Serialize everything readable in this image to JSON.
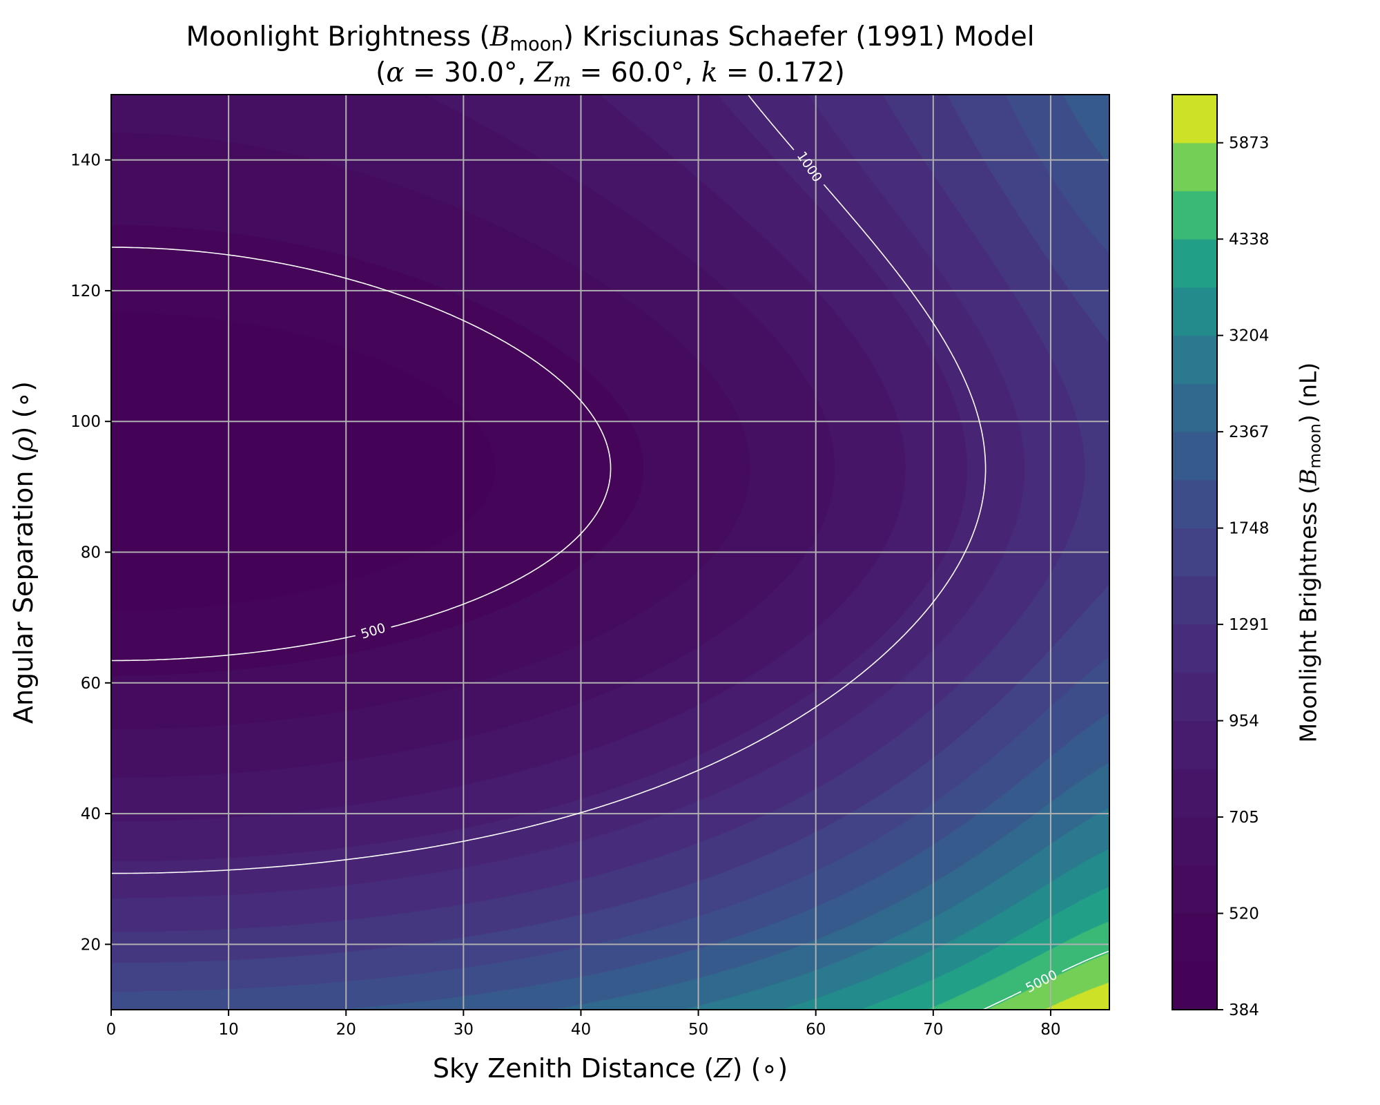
{
  "chart_data": {
    "type": "heatmap",
    "style": "filled-contour",
    "title": {
      "line1": {
        "prefix": "Moonlight Brightness (",
        "symbol": "B",
        "sub": "moon",
        "suffix": ") Krisciunas Schaefer (1991) Model"
      },
      "line2": {
        "open": "(",
        "alpha_sym": "α",
        "alpha_val": " = 30.0°, ",
        "zm_sym": "Z",
        "zm_sub": "m",
        "zm_val": " = 60.0°, ",
        "k_sym": "k",
        "k_val": " = 0.172)"
      }
    },
    "xlabel": {
      "prefix": "Sky Zenith Distance (",
      "symbol": "Z",
      "suffix": ") (∘)"
    },
    "ylabel": {
      "prefix": "Angular Separation (",
      "symbol": "ρ",
      "suffix": ") (∘)"
    },
    "model": {
      "alpha_deg": 30.0,
      "Z_moon_deg": 60.0,
      "k": 0.172
    },
    "xlim": [
      0,
      85
    ],
    "ylim": [
      10,
      150
    ],
    "x_ticks": [
      0,
      10,
      20,
      30,
      40,
      50,
      60,
      70,
      80
    ],
    "y_ticks": [
      20,
      40,
      60,
      80,
      100,
      120,
      140
    ],
    "grid": true,
    "colormap": "viridis",
    "num_levels": 20,
    "zlim": [
      384,
      6840
    ],
    "colorbar": {
      "label": {
        "prefix": "Moonlight Brightness (",
        "symbol": "B",
        "sub": "moon",
        "suffix": ") (nL)"
      },
      "ticks": [
        384,
        520,
        705,
        954,
        1291,
        1748,
        2367,
        3204,
        4338,
        5873
      ]
    },
    "contour_lines": [
      {
        "level": 500,
        "label": "500",
        "label_at": [
          22.3,
          68.0
        ],
        "angle": -17
      },
      {
        "level": 1000,
        "label": "1000",
        "label_at": [
          59.5,
          139.0
        ],
        "angle": 56
      },
      {
        "level": 5000,
        "label": "5000",
        "label_at": [
          79.2,
          14.4
        ],
        "angle": -27
      }
    ],
    "contour_line_color": "#ffffff",
    "grid_color": "#b0b0b0"
  }
}
